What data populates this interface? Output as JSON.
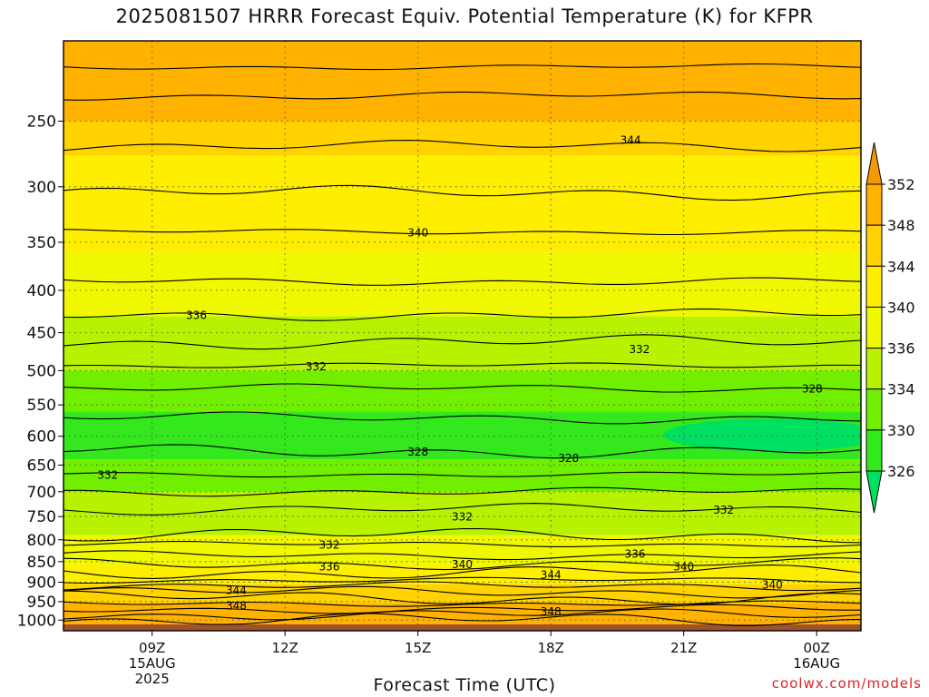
{
  "title": "2025081507 HRRR Forecast Equiv. Potential Temperature (K) for KFPR",
  "credit": "coolwx.com/models",
  "chart_data": {
    "type": "heatmap",
    "title": "2025081507 HRRR Forecast Equiv. Potential Temperature (K) for KFPR",
    "xlabel": "Forecast Time (UTC)",
    "ylabel": "",
    "y_axis": {
      "scale": "log",
      "ylim": [
        1030,
        200
      ],
      "ticks": [
        250,
        300,
        350,
        400,
        450,
        500,
        550,
        600,
        650,
        700,
        750,
        800,
        850,
        900,
        950,
        1000
      ]
    },
    "x_axis": {
      "range_hours": [
        7,
        25
      ],
      "ticks": [
        {
          "hour": 9,
          "lines": [
            "09Z",
            "15AUG",
            "2025"
          ]
        },
        {
          "hour": 12,
          "lines": [
            "12Z"
          ]
        },
        {
          "hour": 15,
          "lines": [
            "15Z"
          ]
        },
        {
          "hour": 18,
          "lines": [
            "18Z"
          ]
        },
        {
          "hour": 21,
          "lines": [
            "21Z"
          ]
        },
        {
          "hour": 24,
          "lines": [
            "00Z",
            "16AUG"
          ]
        }
      ]
    },
    "colorbar": {
      "ticks": [
        326,
        330,
        334,
        336,
        340,
        344,
        348,
        352
      ],
      "colors": [
        "#00e060",
        "#33e81c",
        "#70f000",
        "#b8f200",
        "#f0f800",
        "#ffee00",
        "#ffd200",
        "#ffb200",
        "#f29a00"
      ]
    },
    "grid": true,
    "ground_color": "#a0522d",
    "contours": [
      {
        "value": 350,
        "hour": 24.0,
        "level": 215,
        "labeled": false
      },
      {
        "value": 348,
        "hour": 9.0,
        "level": 233,
        "labeled": false
      },
      {
        "value": 346,
        "hour": 9.0,
        "level": 268,
        "labeled": false
      },
      {
        "value": 344,
        "hour": 19.8,
        "level": 263,
        "labeled": true
      },
      {
        "value": 342,
        "hour": 9.0,
        "level": 305,
        "labeled": false
      },
      {
        "value": 340,
        "hour": 15.0,
        "level": 340,
        "labeled": true
      },
      {
        "value": 338,
        "hour": 9.0,
        "level": 390,
        "labeled": false
      },
      {
        "value": 336,
        "hour": 10.0,
        "level": 428,
        "labeled": true
      },
      {
        "value": 334,
        "hour": 9.0,
        "level": 462,
        "labeled": false
      },
      {
        "value": 332,
        "hour": 20.0,
        "level": 470,
        "labeled": true
      },
      {
        "value": 332,
        "hour": 12.7,
        "level": 493,
        "labeled": true
      },
      {
        "value": 328,
        "hour": 23.9,
        "level": 525,
        "labeled": true
      },
      {
        "value": 328,
        "hour": 15.0,
        "level": 625,
        "labeled": true
      },
      {
        "value": 328,
        "hour": 18.4,
        "level": 636,
        "labeled": true
      },
      {
        "value": 332,
        "hour": 8.0,
        "level": 667,
        "labeled": true
      },
      {
        "value": 332,
        "hour": 16.0,
        "level": 749,
        "labeled": true
      },
      {
        "value": 332,
        "hour": 21.9,
        "level": 735,
        "labeled": true
      },
      {
        "value": 332,
        "hour": 13.0,
        "level": 810,
        "labeled": true
      },
      {
        "value": 336,
        "hour": 13.0,
        "level": 860,
        "labeled": true
      },
      {
        "value": 340,
        "hour": 16.0,
        "level": 855,
        "labeled": true
      },
      {
        "value": 336,
        "hour": 19.9,
        "level": 830,
        "labeled": true
      },
      {
        "value": 340,
        "hour": 21.0,
        "level": 860,
        "labeled": true
      },
      {
        "value": 344,
        "hour": 18.0,
        "level": 880,
        "labeled": true
      },
      {
        "value": 340,
        "hour": 23.0,
        "level": 905,
        "labeled": true
      },
      {
        "value": 344,
        "hour": 10.9,
        "level": 918,
        "labeled": true
      },
      {
        "value": 348,
        "hour": 10.9,
        "level": 958,
        "labeled": true
      },
      {
        "value": 348,
        "hour": 18.0,
        "level": 975,
        "labeled": true
      }
    ]
  }
}
